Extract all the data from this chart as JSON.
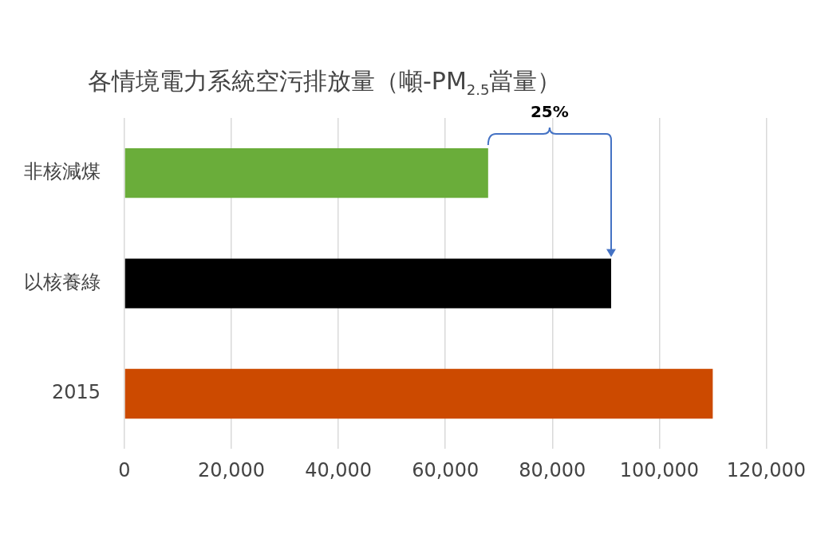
{
  "chart_data": {
    "type": "bar",
    "orientation": "horizontal",
    "title": "各情境電力系統空污排放量（噸-PM$_{2.5}$當量）",
    "categories": [
      "非核減煤",
      "以核養綠",
      "2015"
    ],
    "values": [
      68000,
      91000,
      110000
    ],
    "colors": [
      "#6aad3a",
      "#000000",
      "#cc4a00"
    ],
    "xlim": [
      0,
      120000
    ],
    "xticks": [
      0,
      {
        "value": 20000,
        "label": "20,000"
      },
      {
        "value": 40000,
        "label": "40,000"
      },
      {
        "value": 60000,
        "label": "60,000"
      },
      {
        "value": 80000,
        "label": "80,000"
      },
      {
        "value": 100000,
        "label": "100,000"
      },
      {
        "value": 120000,
        "label": "120,000"
      }
    ],
    "grid": "x",
    "legend": false,
    "annotations": [
      "25%"
    ]
  }
}
